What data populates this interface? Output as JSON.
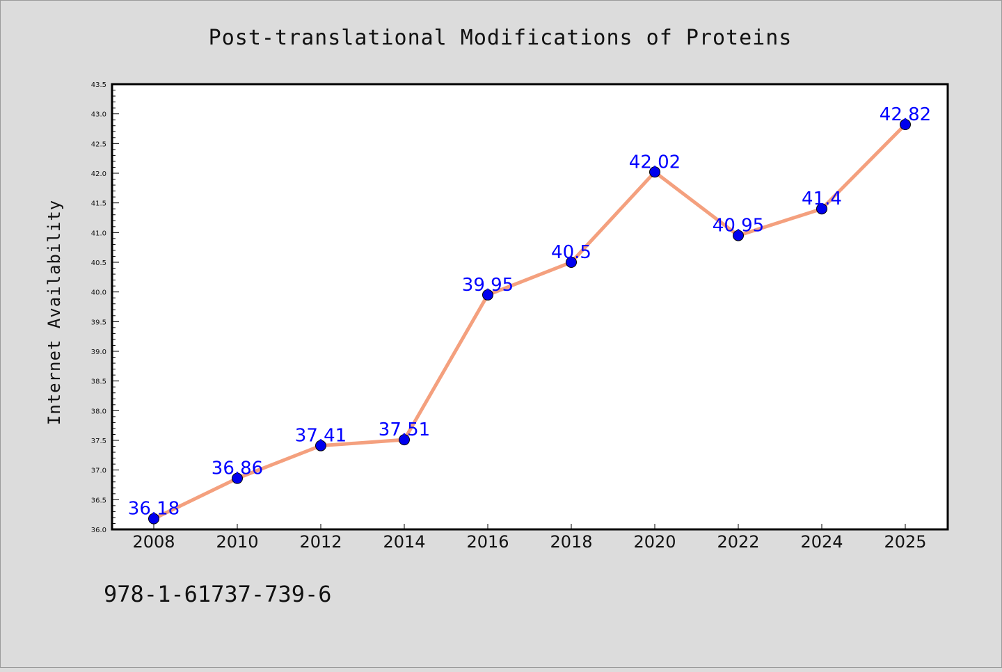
{
  "chart_data": {
    "type": "line",
    "title": "Post-translational Modifications of Proteins",
    "xlabel": "",
    "ylabel": "Internet Availability",
    "categories": [
      "2008",
      "2010",
      "2012",
      "2014",
      "2016",
      "2018",
      "2020",
      "2022",
      "2024",
      "2025"
    ],
    "values": [
      36.18,
      36.86,
      37.41,
      37.51,
      39.95,
      40.5,
      42.02,
      40.95,
      41.4,
      42.82
    ],
    "data_labels": [
      "36.18",
      "36.86",
      "37.41",
      "37.51",
      "39.95",
      "40.5",
      "42.02",
      "40.95",
      "41.4",
      "42.82"
    ],
    "ylim": [
      36.0,
      43.5
    ],
    "yticks": [
      "36.0",
      "36.5",
      "37.0",
      "37.5",
      "38.0",
      "38.5",
      "39.0",
      "39.5",
      "40.0",
      "40.5",
      "41.0",
      "41.5",
      "42.0",
      "42.5",
      "43.0",
      "43.5"
    ],
    "grid": false,
    "legend": "none",
    "line_color": "#f4a07e",
    "marker_color": "#0000ee",
    "label_color": "#0000ff"
  },
  "footer_text": "978-1-61737-739-6"
}
